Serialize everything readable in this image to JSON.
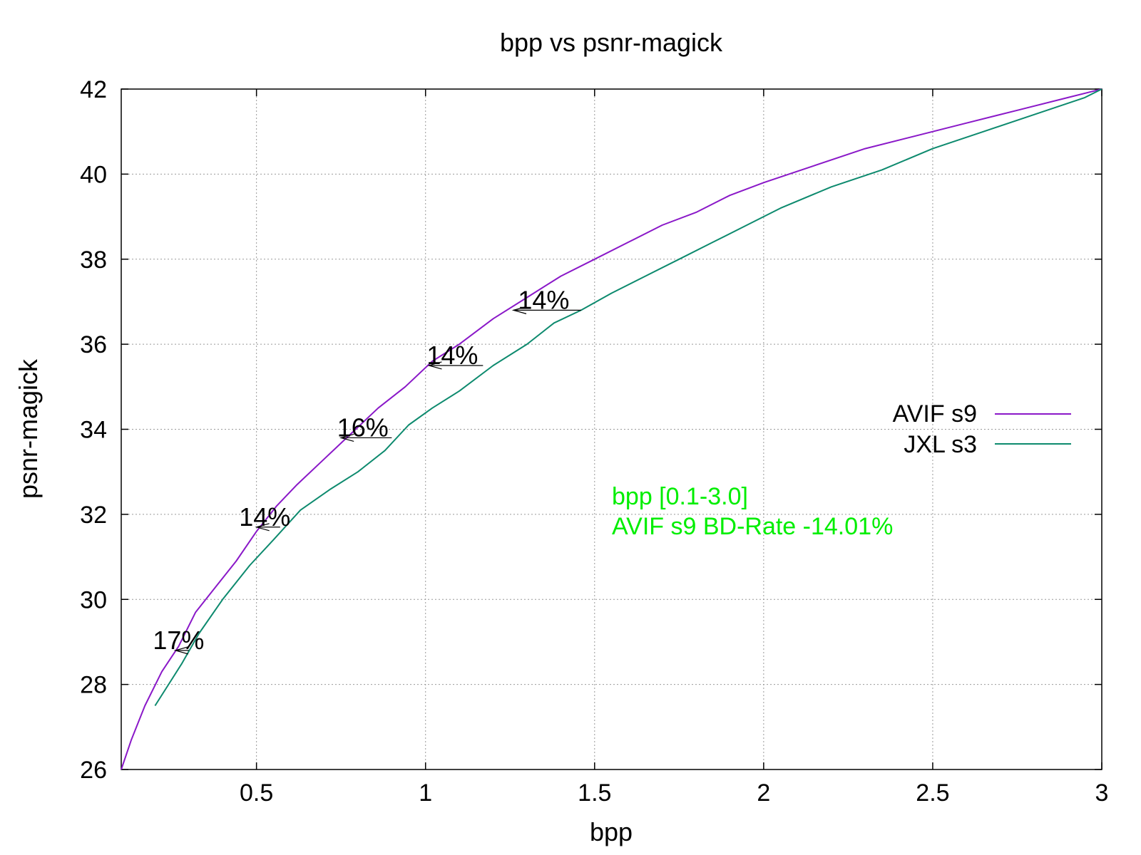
{
  "chart_data": {
    "type": "line",
    "title": "bpp vs psnr-magick",
    "xlabel": "bpp",
    "ylabel": "psnr-magick",
    "xlim": [
      0.1,
      3.0
    ],
    "ylim": [
      26,
      42
    ],
    "grid": true,
    "legend_placement": "right",
    "x_ticks": [
      {
        "value": 0.5,
        "label": "0.5"
      },
      {
        "value": 1.0,
        "label": "1"
      },
      {
        "value": 1.5,
        "label": "1.5"
      },
      {
        "value": 2.0,
        "label": "2"
      },
      {
        "value": 2.5,
        "label": "2.5"
      },
      {
        "value": 3.0,
        "label": "3"
      }
    ],
    "y_ticks": [
      {
        "value": 26,
        "label": "26"
      },
      {
        "value": 28,
        "label": "28"
      },
      {
        "value": 30,
        "label": "30"
      },
      {
        "value": 32,
        "label": "32"
      },
      {
        "value": 34,
        "label": "34"
      },
      {
        "value": 36,
        "label": "36"
      },
      {
        "value": 38,
        "label": "38"
      },
      {
        "value": 40,
        "label": "40"
      },
      {
        "value": 42,
        "label": "42"
      }
    ],
    "series": [
      {
        "name": "AVIF s9",
        "color": "#8a18c8",
        "points": [
          [
            0.1,
            26.0
          ],
          [
            0.13,
            26.7
          ],
          [
            0.17,
            27.5
          ],
          [
            0.22,
            28.3
          ],
          [
            0.27,
            28.9
          ],
          [
            0.32,
            29.7
          ],
          [
            0.38,
            30.3
          ],
          [
            0.44,
            30.9
          ],
          [
            0.5,
            31.6
          ],
          [
            0.56,
            32.2
          ],
          [
            0.62,
            32.7
          ],
          [
            0.7,
            33.3
          ],
          [
            0.78,
            33.9
          ],
          [
            0.86,
            34.5
          ],
          [
            0.94,
            35.0
          ],
          [
            1.02,
            35.6
          ],
          [
            1.1,
            36.0
          ],
          [
            1.2,
            36.6
          ],
          [
            1.3,
            37.1
          ],
          [
            1.4,
            37.6
          ],
          [
            1.5,
            38.0
          ],
          [
            1.6,
            38.4
          ],
          [
            1.7,
            38.8
          ],
          [
            1.8,
            39.1
          ],
          [
            1.9,
            39.5
          ],
          [
            2.0,
            39.8
          ],
          [
            2.15,
            40.2
          ],
          [
            2.3,
            40.6
          ],
          [
            2.45,
            40.9
          ],
          [
            2.6,
            41.2
          ],
          [
            2.75,
            41.5
          ],
          [
            2.9,
            41.8
          ],
          [
            3.0,
            42.0
          ]
        ]
      },
      {
        "name": "JXL s3",
        "color": "#0d8a6e",
        "points": [
          [
            0.2,
            27.5
          ],
          [
            0.24,
            28.0
          ],
          [
            0.28,
            28.5
          ],
          [
            0.33,
            29.2
          ],
          [
            0.4,
            30.0
          ],
          [
            0.48,
            30.8
          ],
          [
            0.55,
            31.4
          ],
          [
            0.63,
            32.1
          ],
          [
            0.72,
            32.6
          ],
          [
            0.8,
            33.0
          ],
          [
            0.88,
            33.5
          ],
          [
            0.95,
            34.1
          ],
          [
            1.02,
            34.5
          ],
          [
            1.1,
            34.9
          ],
          [
            1.2,
            35.5
          ],
          [
            1.3,
            36.0
          ],
          [
            1.38,
            36.5
          ],
          [
            1.46,
            36.8
          ],
          [
            1.55,
            37.2
          ],
          [
            1.65,
            37.6
          ],
          [
            1.75,
            38.0
          ],
          [
            1.85,
            38.4
          ],
          [
            1.95,
            38.8
          ],
          [
            2.05,
            39.2
          ],
          [
            2.2,
            39.7
          ],
          [
            2.35,
            40.1
          ],
          [
            2.5,
            40.6
          ],
          [
            2.65,
            41.0
          ],
          [
            2.8,
            41.4
          ],
          [
            2.95,
            41.8
          ],
          [
            3.0,
            42.0
          ]
        ]
      }
    ],
    "annotations": [
      {
        "text": "17%",
        "x_from": 0.3,
        "x_to": 0.26,
        "y": 28.8
      },
      {
        "text": "14%",
        "x_from": 0.57,
        "x_to": 0.5,
        "y": 31.7
      },
      {
        "text": "16%",
        "x_from": 0.9,
        "x_to": 0.75,
        "y": 33.8
      },
      {
        "text": "14%",
        "x_from": 1.17,
        "x_to": 1.01,
        "y": 35.5
      },
      {
        "text": "14%",
        "x_from": 1.46,
        "x_to": 1.26,
        "y": 36.8
      }
    ],
    "notes": {
      "color": "#00ee00",
      "line1": "bpp [0.1-3.0]",
      "line2": "AVIF s9 BD-Rate -14.01%"
    }
  }
}
